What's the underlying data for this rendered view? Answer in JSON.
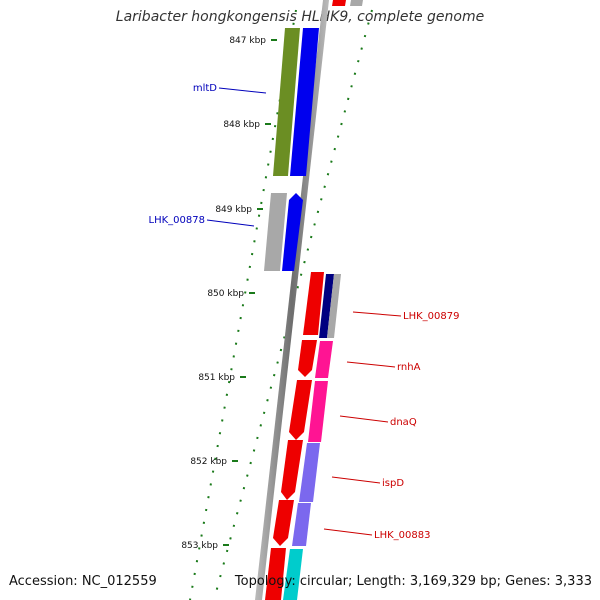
{
  "title": "Laribacter hongkongensis HLHK9, complete genome",
  "footer": {
    "accession": "Accession: NC_012559",
    "summary": "Topology: circular; Length: 3,169,329 bp; Genes: 3,333"
  },
  "scale_labels": [
    "847 kbp",
    "848 kbp",
    "849 kbp",
    "850 kbp",
    "851 kbp",
    "852 kbp",
    "853 kbp"
  ],
  "left_genes": [
    {
      "label": "mltD",
      "color": "#0000bb"
    },
    {
      "label": "LHK_00878",
      "color": "#0000bb"
    }
  ],
  "right_genes": [
    {
      "label": "LHK_00879",
      "color": "#cc0000"
    },
    {
      "label": "rnhA",
      "color": "#cc0000"
    },
    {
      "label": "dnaQ",
      "color": "#cc0000"
    },
    {
      "label": "ispD",
      "color": "#cc0000"
    },
    {
      "label": "LHK_00883",
      "color": "#cc0000"
    }
  ],
  "colors": {
    "backbone": "#8a8a8a",
    "forward_strand": "#ee0000",
    "reverse_strand": "#0000ee",
    "tick": "#1a7a1a",
    "cog_olive": "#6b8e23",
    "cog_gray": "#a8a8a8",
    "cog_navy": "#000080",
    "cog_pink": "#ff1493",
    "cog_purple": "#7b68ee",
    "cog_cyan": "#00cccc"
  }
}
